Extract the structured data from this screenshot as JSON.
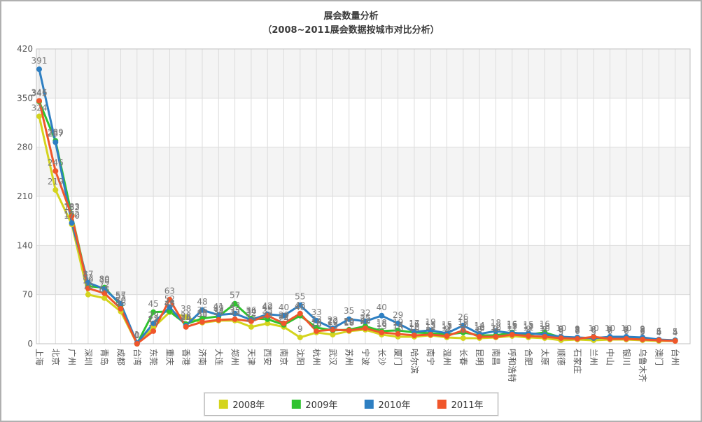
{
  "title": {
    "line1": "展会数量分析",
    "line2": "（2008~2011展会数据按城市对比分析）"
  },
  "chart_data": {
    "type": "line",
    "categories": [
      "上海",
      "北京",
      "广州",
      "深圳",
      "青岛",
      "成都",
      "台湾",
      "东莞",
      "重庆",
      "香港",
      "济南",
      "大连",
      "郑州",
      "天津",
      "西安",
      "南京",
      "沈阳",
      "杭州",
      "武汉",
      "苏州",
      "宁波",
      "长沙",
      "厦门",
      "哈尔滨",
      "南宁",
      "温州",
      "长春",
      "昆明",
      "南昌",
      "呼和浩特",
      "合肥",
      "太原",
      "顺德",
      "石家庄",
      "兰州",
      "中山",
      "银川",
      "乌鲁木齐",
      "澳门",
      "台州"
    ],
    "series": [
      {
        "name": "2008年",
        "color": "#d4d41d",
        "values": [
          324,
          219,
          170,
          70,
          65,
          46,
          0,
          23,
          45,
          38,
          30,
          33,
          33,
          24,
          29,
          24,
          9,
          16,
          13,
          18,
          20,
          13,
          10,
          10,
          12,
          9,
          8,
          8,
          9,
          11,
          9,
          8,
          5,
          6,
          5,
          6,
          6,
          5,
          4,
          4
        ]
      },
      {
        "name": "2009年",
        "color": "#2fc32f",
        "values": [
          345,
          289,
          183,
          82,
          80,
          55,
          0,
          45,
          46,
          28,
          36,
          39,
          57,
          36,
          35,
          27,
          40,
          23,
          19,
          20,
          25,
          18,
          19,
          16,
          15,
          13,
          16,
          12,
          12,
          16,
          13,
          16,
          9,
          8,
          8,
          9,
          9,
          8,
          5,
          5
        ]
      },
      {
        "name": "2010年",
        "color": "#2e7fc2",
        "values": [
          391,
          287,
          172,
          87,
          78,
          57,
          1,
          29,
          52,
          26,
          48,
          41,
          43,
          34,
          42,
          40,
          55,
          33,
          22,
          35,
          32,
          40,
          29,
          17,
          19,
          15,
          26,
          14,
          18,
          15,
          15,
          13,
          10,
          9,
          8,
          10,
          10,
          9,
          6,
          5
        ]
      },
      {
        "name": "2011年",
        "color": "#f0562b",
        "values": [
          346,
          246,
          182,
          79,
          72,
          50,
          0,
          18,
          63,
          24,
          31,
          34,
          35,
          32,
          40,
          29,
          43,
          18,
          20,
          19,
          22,
          16,
          14,
          12,
          13,
          11,
          19,
          10,
          10,
          13,
          11,
          10,
          8,
          7,
          10,
          7,
          7,
          6,
          5,
          4
        ]
      }
    ],
    "ylim": [
      0,
      420
    ],
    "y_ticks": [
      0,
      70,
      140,
      210,
      280,
      350,
      420
    ],
    "grid": true,
    "legend_position": "bottom"
  },
  "colors": {
    "band_fill": "#f4f4f4",
    "gridline": "#dcdcdc",
    "plot_frame": "#c0c0c0",
    "y_tick_text": "#555555",
    "x_label_text": "#555555",
    "value_label_text": "#7a7a7a",
    "title_text": "#3c3c3c"
  }
}
